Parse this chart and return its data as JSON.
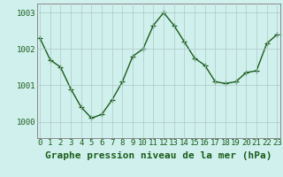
{
  "x": [
    0,
    1,
    2,
    3,
    4,
    5,
    6,
    7,
    8,
    9,
    10,
    11,
    12,
    13,
    14,
    15,
    16,
    17,
    18,
    19,
    20,
    21,
    22,
    23
  ],
  "y": [
    1002.3,
    1001.7,
    1001.5,
    1000.9,
    1000.4,
    1000.1,
    1000.2,
    1000.6,
    1001.1,
    1001.8,
    1002.0,
    1002.65,
    1003.0,
    1002.65,
    1002.2,
    1001.75,
    1001.55,
    1001.1,
    1001.05,
    1001.1,
    1001.35,
    1001.4,
    1002.15,
    1002.4
  ],
  "line_color": "#1a5c1a",
  "marker": "+",
  "marker_size": 4,
  "bg_color": "#cff0ec",
  "label_bg_color": "#2e6b2e",
  "grid_color": "#b0c8c8",
  "xlabel": "Graphe pression niveau de la mer (hPa)",
  "xlabel_fontsize": 8,
  "ytick_labels": [
    "1000",
    "1001",
    "1002",
    "1003"
  ],
  "yticks": [
    1000,
    1001,
    1002,
    1003
  ],
  "xticks": [
    0,
    1,
    2,
    3,
    4,
    5,
    6,
    7,
    8,
    9,
    10,
    11,
    12,
    13,
    14,
    15,
    16,
    17,
    18,
    19,
    20,
    21,
    22,
    23
  ],
  "ylim": [
    999.55,
    1003.25
  ],
  "xlim": [
    -0.3,
    23.3
  ],
  "tick_fontsize": 6.5,
  "line_width": 1.0
}
